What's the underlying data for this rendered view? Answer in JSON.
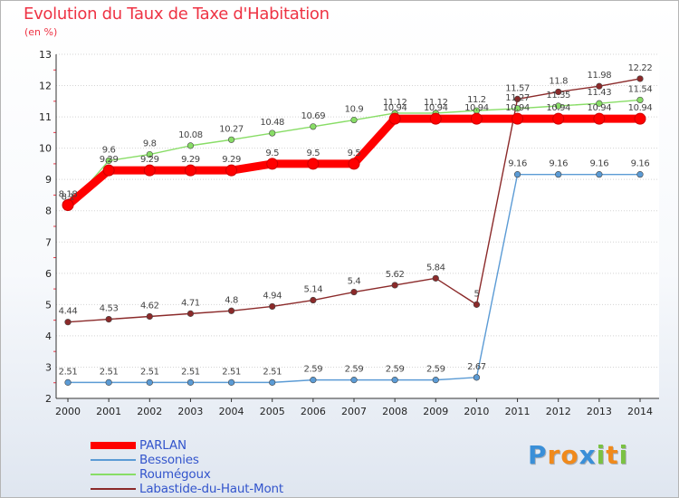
{
  "header": {
    "title": "Evolution du Taux de Taxe d'Habitation",
    "subtitle": "(en %)"
  },
  "logo": {
    "letters": [
      "P",
      "r",
      "o",
      "x",
      "i",
      "t",
      "i"
    ],
    "colors": [
      "#3a8fd8",
      "#f08a1c",
      "#f08a1c",
      "#3a8fd8",
      "#7ac143",
      "#f08a1c",
      "#7ac143"
    ]
  },
  "chart_data": {
    "type": "line",
    "title": "Evolution du Taux de Taxe d'Habitation",
    "ylabel": "(en %)",
    "xlabel": "",
    "x": [
      "2000",
      "2001",
      "2002",
      "2003",
      "2004",
      "2005",
      "2006",
      "2007",
      "2008",
      "2009",
      "2010",
      "2011",
      "2012",
      "2013",
      "2014"
    ],
    "ylim": [
      2,
      13
    ],
    "yticks": [
      "2",
      "3",
      "4",
      "5",
      "6",
      "7",
      "8",
      "9",
      "10",
      "11",
      "12",
      "13"
    ],
    "grid": "horizontal",
    "legend_position": "bottom-left",
    "series": [
      {
        "name": "PARLAN",
        "color": "#ff0000",
        "values": [
          8.18,
          9.29,
          9.29,
          9.29,
          9.29,
          9.5,
          9.5,
          9.5,
          10.94,
          10.94,
          10.94,
          10.94,
          10.94,
          10.94,
          10.94
        ],
        "labels": [
          "8.18",
          "9.29",
          "9.29",
          "9.29",
          "9.29",
          "9.5",
          "9.5",
          "9.5",
          "10.94",
          "10.94",
          "10.94",
          "10.94",
          "10.94",
          "10.94",
          "10.94"
        ]
      },
      {
        "name": "Bessonies",
        "color": "#5b9bd5",
        "values": [
          2.51,
          2.51,
          2.51,
          2.51,
          2.51,
          2.51,
          2.59,
          2.59,
          2.59,
          2.59,
          2.67,
          9.16,
          9.16,
          9.16,
          9.16
        ],
        "labels": [
          "2.51",
          "2.51",
          "2.51",
          "2.51",
          "2.51",
          "2.51",
          "2.59",
          "2.59",
          "2.59",
          "2.59",
          "2.67",
          "9.16",
          "9.16",
          "9.16",
          "9.16"
        ]
      },
      {
        "name": "Roumégoux",
        "color": "#88dd66",
        "values": [
          8.1,
          9.6,
          9.8,
          10.08,
          10.27,
          10.48,
          10.69,
          10.9,
          11.12,
          11.12,
          11.2,
          11.27,
          11.35,
          11.43,
          11.54
        ],
        "labels": [
          "8.1",
          "9.6",
          "9.8",
          "10.08",
          "10.27",
          "10.48",
          "10.69",
          "10.9",
          "11.12",
          "11.12",
          "11.2",
          "11.27",
          "11.35",
          "11.43",
          "11.54"
        ]
      },
      {
        "name": "Labastide-du-Haut-Mont",
        "color": "#8b2a2a",
        "values": [
          4.44,
          4.53,
          4.62,
          4.71,
          4.8,
          4.94,
          5.14,
          5.4,
          5.62,
          5.84,
          5,
          11.57,
          11.8,
          11.98,
          12.22
        ],
        "labels": [
          "4.44",
          "4.53",
          "4.62",
          "4.71",
          "4.8",
          "4.94",
          "5.14",
          "5.4",
          "5.62",
          "5.84",
          "5",
          "11.57",
          "11.8",
          "11.98",
          "12.22"
        ]
      }
    ]
  }
}
